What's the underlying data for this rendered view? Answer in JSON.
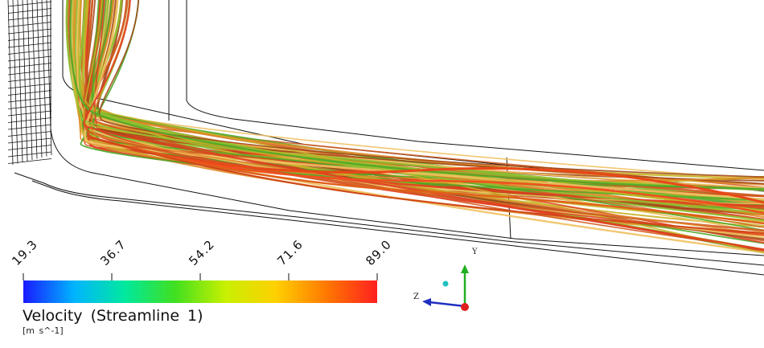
{
  "colorbar": {
    "ticks": [
      "19.3",
      "36.7",
      "54.2",
      "71.6",
      "89.0"
    ],
    "title": "Velocity (Streamline 1)",
    "unit": "[m s^-1]",
    "colors": [
      "#1a1aff",
      "#00b4ff",
      "#00e8a0",
      "#40e020",
      "#c8f000",
      "#ffd000",
      "#ff7800",
      "#ff2020"
    ]
  },
  "axes_triad": {
    "y_label": "Y",
    "z_label": "Z",
    "colors": {
      "y": "#20b020",
      "z": "#2030c0",
      "x": "#e02020",
      "origin": "#20c0c0"
    }
  },
  "scene": {
    "line_color": "#111111",
    "streamline_palette": [
      "#d05a20",
      "#e08a28",
      "#c8b428",
      "#8cc030",
      "#50a828",
      "#e04020",
      "#f0c060",
      "#a04818"
    ]
  }
}
